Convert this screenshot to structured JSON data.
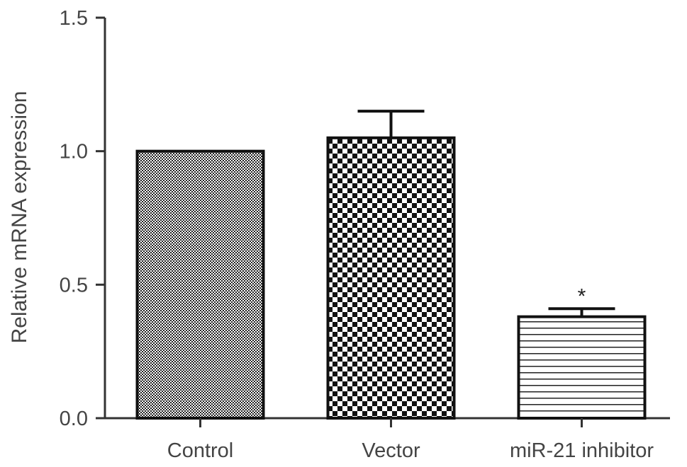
{
  "chart_data": {
    "type": "bar",
    "title": "",
    "xlabel": "",
    "ylabel": "Relative mRNA expression",
    "ylim": [
      0,
      1.5
    ],
    "yticks": [
      0.0,
      0.5,
      1.0,
      1.5
    ],
    "ytick_labels": [
      "0.0",
      "0.5",
      "1.0",
      "1.5"
    ],
    "categories": [
      "Control",
      "Vector",
      "miR-21 inhibitor"
    ],
    "values": [
      1.0,
      1.05,
      0.38
    ],
    "error_upper": [
      0,
      0.1,
      0.03
    ],
    "patterns": [
      "fine-dots",
      "checkerboard",
      "horizontal-lines"
    ],
    "annotations": [
      "",
      "",
      "*"
    ],
    "grid": false,
    "legend": "none"
  }
}
